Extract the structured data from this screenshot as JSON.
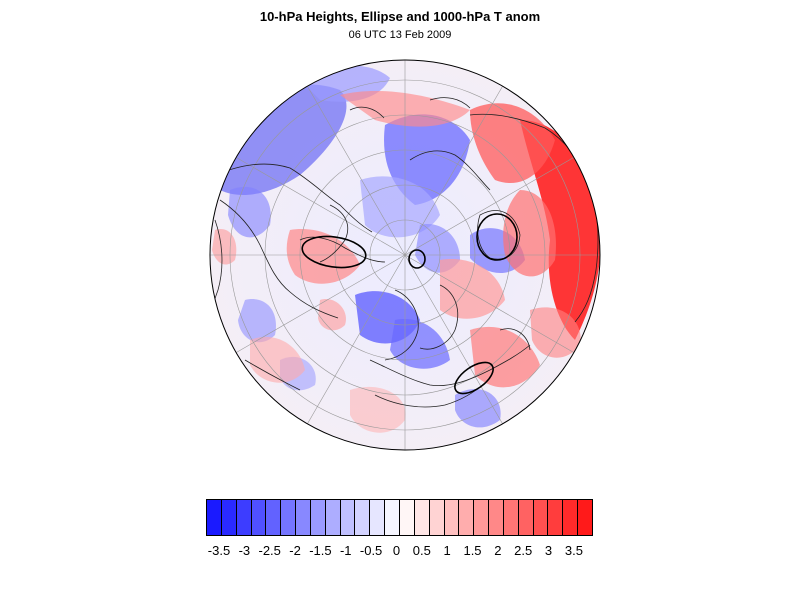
{
  "title": "10-hPa Heights, Ellipse and 1000-hPa T anom",
  "subtitle": "06 UTC 13 Feb 2009",
  "colorbar": {
    "colors": [
      "#1a1aff",
      "#2a2aff",
      "#3d3dff",
      "#5050ff",
      "#6262ff",
      "#7575ff",
      "#8888ff",
      "#9a9aff",
      "#adadff",
      "#c0c0ff",
      "#d3d3ff",
      "#e6e6ff",
      "#f6f6ff",
      "#fff6f6",
      "#ffe6e6",
      "#ffd3d3",
      "#ffc0c0",
      "#ffadad",
      "#ff9a9a",
      "#ff8888",
      "#ff7575",
      "#ff6262",
      "#ff5050",
      "#ff3d3d",
      "#ff2a2a",
      "#ff1a1a"
    ],
    "labels": [
      "-3.5",
      "-3",
      "-2.5",
      "-2",
      "-1.5",
      "-1",
      "-0.5",
      "0",
      "0.5",
      "1",
      "1.5",
      "2",
      "2.5",
      "3",
      "3.5"
    ]
  }
}
